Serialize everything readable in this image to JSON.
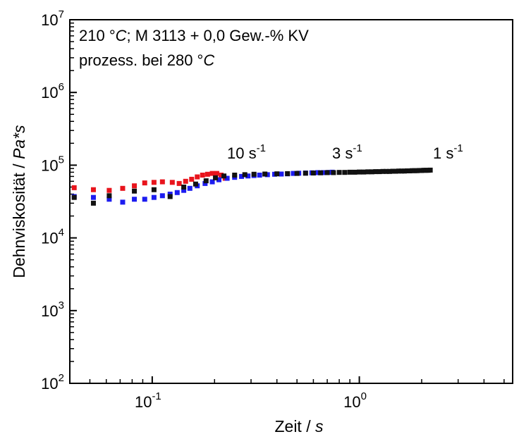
{
  "chart_data": {
    "type": "scatter",
    "annotation_line1_prefix": "210 °",
    "annotation_line1_italic": "C",
    "annotation_line1_suffix": "; M 3113 + 0,0 Gew.-% KV",
    "annotation_line2_prefix": "prozess. bei 280 °",
    "annotation_line2_italic": "C",
    "xlabel_prefix": "Zeit / ",
    "xlabel_italic": "s",
    "ylabel_prefix": "Dehnviskosität / ",
    "ylabel_italic": "Pa*s",
    "x_scale": "log",
    "y_scale": "log",
    "xlim": [
      0.04,
      5.5
    ],
    "ylim": [
      100,
      10000000
    ],
    "x_ticks": [
      {
        "base": "10",
        "exp": "-1",
        "value": 0.1
      },
      {
        "base": "10",
        "exp": "0",
        "value": 1
      }
    ],
    "y_ticks": [
      {
        "base": "10",
        "exp": "2",
        "value": 100
      },
      {
        "base": "10",
        "exp": "3",
        "value": 1000
      },
      {
        "base": "10",
        "exp": "4",
        "value": 10000
      },
      {
        "base": "10",
        "exp": "5",
        "value": 100000
      },
      {
        "base": "10",
        "exp": "6",
        "value": 1000000
      },
      {
        "base": "10",
        "exp": "7",
        "value": 10000000
      }
    ],
    "series": [
      {
        "name": "10 s-1",
        "label_base": "10 s",
        "label_exp": "-1",
        "color": "#e8141c",
        "points": [
          [
            0.042,
            49000
          ],
          [
            0.052,
            46000
          ],
          [
            0.062,
            45000
          ],
          [
            0.072,
            48000
          ],
          [
            0.082,
            52000
          ],
          [
            0.092,
            57000
          ],
          [
            0.102,
            58000
          ],
          [
            0.112,
            59000
          ],
          [
            0.125,
            58000
          ],
          [
            0.135,
            56000
          ],
          [
            0.145,
            60000
          ],
          [
            0.155,
            64000
          ],
          [
            0.165,
            69000
          ],
          [
            0.175,
            73000
          ],
          [
            0.185,
            75000
          ],
          [
            0.195,
            77000
          ],
          [
            0.205,
            77000
          ],
          [
            0.215,
            73000
          ],
          [
            0.225,
            66000
          ]
        ]
      },
      {
        "name": "3 s-1",
        "label_base": "3 s",
        "label_exp": "-1",
        "color": "#1c1cf0",
        "points": [
          [
            0.042,
            37000
          ],
          [
            0.052,
            36000
          ],
          [
            0.062,
            34000
          ],
          [
            0.072,
            31000
          ],
          [
            0.082,
            34000
          ],
          [
            0.092,
            34000
          ],
          [
            0.102,
            36000
          ],
          [
            0.112,
            38000
          ],
          [
            0.122,
            40000
          ],
          [
            0.132,
            42000
          ],
          [
            0.142,
            45000
          ],
          [
            0.152,
            48000
          ],
          [
            0.165,
            52000
          ],
          [
            0.18,
            56000
          ],
          [
            0.195,
            59000
          ],
          [
            0.21,
            63000
          ],
          [
            0.23,
            66000
          ],
          [
            0.25,
            68000
          ],
          [
            0.27,
            70000
          ],
          [
            0.29,
            71000
          ],
          [
            0.31,
            72000
          ],
          [
            0.33,
            73000
          ],
          [
            0.36,
            74000
          ],
          [
            0.39,
            75000
          ],
          [
            0.42,
            75500
          ],
          [
            0.45,
            76000
          ],
          [
            0.48,
            77000
          ],
          [
            0.51,
            77500
          ],
          [
            0.55,
            78000
          ],
          [
            0.59,
            78500
          ],
          [
            0.63,
            79000
          ],
          [
            0.67,
            79000
          ],
          [
            0.71,
            79500
          ],
          [
            0.74,
            80000
          ]
        ]
      },
      {
        "name": "1 s-1",
        "label_base": "1 s",
        "label_exp": "-1",
        "color": "#111111",
        "points": [
          [
            0.042,
            36000
          ],
          [
            0.052,
            30000
          ],
          [
            0.062,
            38000
          ],
          [
            0.082,
            44000
          ],
          [
            0.102,
            46000
          ],
          [
            0.122,
            37000
          ],
          [
            0.142,
            50000
          ],
          [
            0.162,
            55000
          ],
          [
            0.182,
            61000
          ],
          [
            0.202,
            67000
          ],
          [
            0.222,
            71000
          ],
          [
            0.25,
            73000
          ],
          [
            0.28,
            74000
          ],
          [
            0.31,
            75000
          ],
          [
            0.35,
            75500
          ],
          [
            0.4,
            76000
          ],
          [
            0.45,
            76500
          ],
          [
            0.5,
            77000
          ],
          [
            0.55,
            77500
          ],
          [
            0.6,
            78000
          ],
          [
            0.65,
            78500
          ],
          [
            0.7,
            79000
          ],
          [
            0.75,
            79000
          ],
          [
            0.8,
            79500
          ],
          [
            0.85,
            79500
          ],
          [
            0.9,
            80000
          ],
          [
            0.95,
            80000
          ],
          [
            1.0,
            80500
          ],
          [
            1.05,
            80500
          ],
          [
            1.1,
            81000
          ],
          [
            1.15,
            81000
          ],
          [
            1.2,
            81500
          ],
          [
            1.25,
            81500
          ],
          [
            1.3,
            82000
          ],
          [
            1.35,
            82000
          ],
          [
            1.4,
            82000
          ],
          [
            1.45,
            82500
          ],
          [
            1.5,
            82500
          ],
          [
            1.55,
            83000
          ],
          [
            1.6,
            83000
          ],
          [
            1.65,
            83000
          ],
          [
            1.7,
            83500
          ],
          [
            1.75,
            83500
          ],
          [
            1.8,
            84000
          ],
          [
            1.85,
            84000
          ],
          [
            1.9,
            84000
          ],
          [
            1.95,
            84500
          ],
          [
            2.0,
            84500
          ],
          [
            2.05,
            85000
          ],
          [
            2.1,
            85000
          ],
          [
            2.15,
            85000
          ],
          [
            2.2,
            85500
          ]
        ]
      }
    ]
  }
}
